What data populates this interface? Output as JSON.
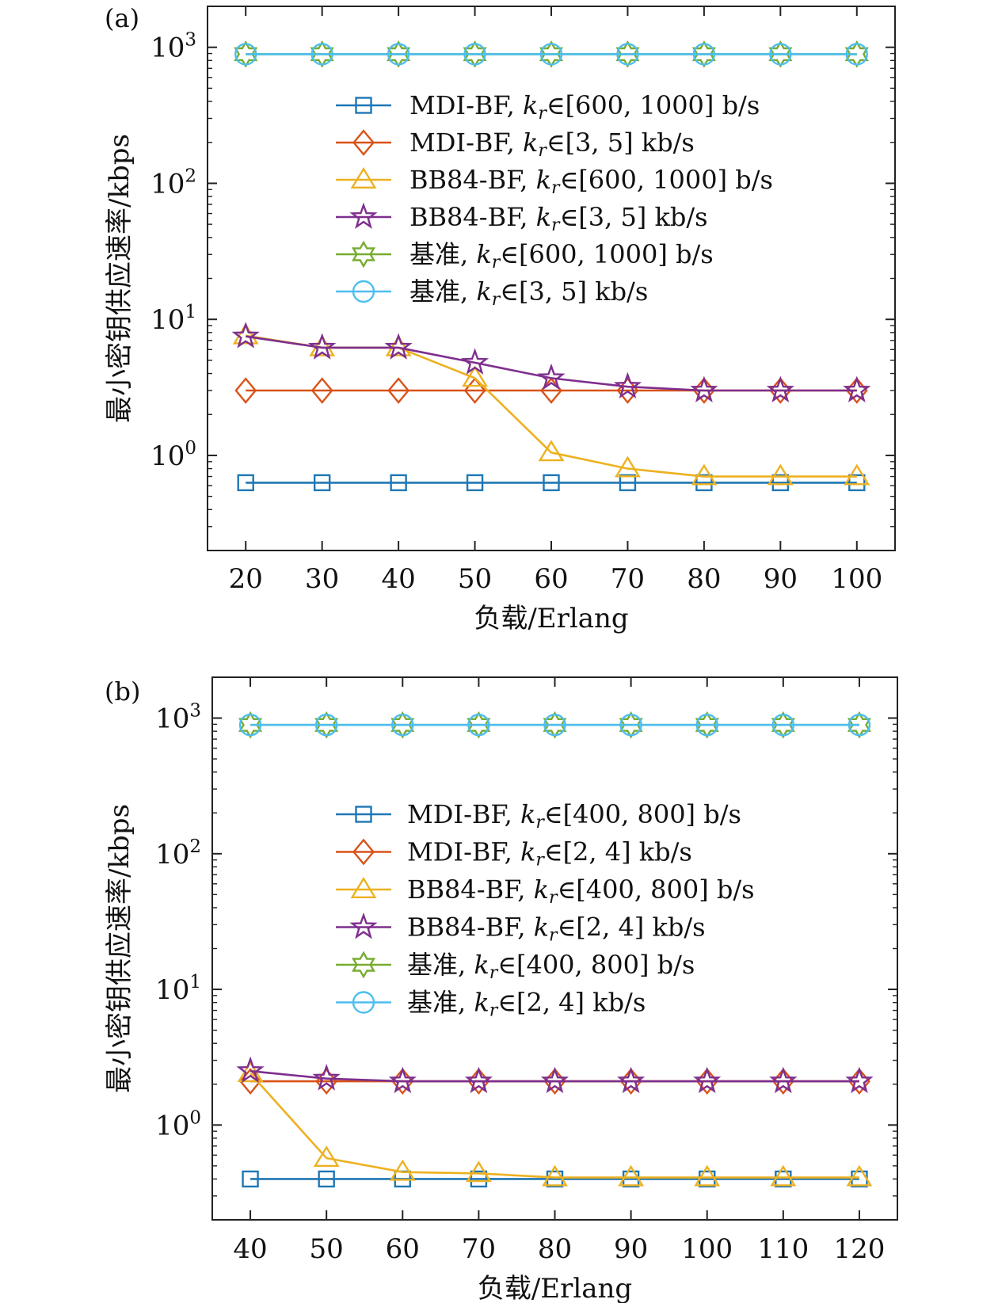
{
  "colors": {
    "blue": "#1f77b4",
    "orange": "#d95319",
    "yellow": "#edb120",
    "purple": "#7e2f8e",
    "green": "#77ac30",
    "cyan": "#4dbeee"
  },
  "chart_data": [
    {
      "type": "line",
      "panel_label": "(a)",
      "xlabel": "负载/Erlang",
      "ylabel": "最小密钥供应速率/kbps",
      "yscale": "log",
      "ylim": [
        0.2,
        2000
      ],
      "yticks": [
        1,
        10,
        100,
        1000
      ],
      "ytick_labels": [
        {
          "base": "10",
          "exp": "0"
        },
        {
          "base": "10",
          "exp": "1"
        },
        {
          "base": "10",
          "exp": "2"
        },
        {
          "base": "10",
          "exp": "3"
        }
      ],
      "xlim": [
        15,
        105
      ],
      "x": [
        20,
        30,
        40,
        50,
        60,
        70,
        80,
        90,
        100
      ],
      "xtick_labels": [
        "20",
        "30",
        "40",
        "50",
        "60",
        "70",
        "80",
        "90",
        "100"
      ],
      "legend_position": "upper-right",
      "series": [
        {
          "name": "MDI-BF, kr∈[600, 1000] b/s",
          "label_prefix": "MDI-BF, ",
          "label_range": "∈[600, 1000] b/s",
          "color_key": "blue",
          "marker": "square",
          "values": [
            0.63,
            0.63,
            0.63,
            0.63,
            0.63,
            0.63,
            0.63,
            0.63,
            0.63
          ]
        },
        {
          "name": "MDI-BF, kr∈[3, 5] kb/s",
          "label_prefix": "MDI-BF, ",
          "label_range": "∈[3, 5] kb/s",
          "color_key": "orange",
          "marker": "diamond",
          "values": [
            3.0,
            3.0,
            3.0,
            3.0,
            3.0,
            3.0,
            3.0,
            3.0,
            3.0
          ]
        },
        {
          "name": "BB84-BF, kr∈[600, 1000] b/s",
          "label_prefix": "BB84-BF, ",
          "label_range": "∈[600, 1000] b/s",
          "color_key": "yellow",
          "marker": "triangle",
          "values": [
            7.6,
            6.2,
            6.2,
            3.7,
            1.05,
            0.8,
            0.7,
            0.7,
            0.7
          ]
        },
        {
          "name": "BB84-BF, kr∈[3, 5] kb/s",
          "label_prefix": "BB84-BF, ",
          "label_range": "∈[3, 5] kb/s",
          "color_key": "purple",
          "marker": "star5",
          "values": [
            7.5,
            6.2,
            6.2,
            4.8,
            3.7,
            3.2,
            3.0,
            3.0,
            3.0
          ]
        },
        {
          "name": "基准, kr∈[600, 1000] b/s",
          "label_prefix": "基准, ",
          "label_range": "∈[600, 1000] b/s",
          "color_key": "green",
          "marker": "hexagram",
          "values": [
            890,
            890,
            890,
            890,
            890,
            890,
            890,
            890,
            890
          ]
        },
        {
          "name": "基准, kr∈[3, 5] kb/s",
          "label_prefix": "基准, ",
          "label_range": "∈[3, 5] kb/s",
          "color_key": "cyan",
          "marker": "circle",
          "values": [
            890,
            890,
            890,
            890,
            890,
            890,
            890,
            890,
            890
          ]
        }
      ]
    },
    {
      "type": "line",
      "panel_label": "(b)",
      "xlabel": "负载/Erlang",
      "ylabel": "最小密钥供应速率/kbps",
      "yscale": "log",
      "ylim": [
        0.2,
        2000
      ],
      "yticks": [
        1,
        10,
        100,
        1000
      ],
      "ytick_labels": [
        {
          "base": "10",
          "exp": "0"
        },
        {
          "base": "10",
          "exp": "1"
        },
        {
          "base": "10",
          "exp": "2"
        },
        {
          "base": "10",
          "exp": "3"
        }
      ],
      "xlim": [
        35,
        125
      ],
      "x": [
        40,
        50,
        60,
        70,
        80,
        90,
        100,
        110,
        120
      ],
      "xtick_labels": [
        "40",
        "50",
        "60",
        "70",
        "80",
        "90",
        "100",
        "110",
        "120"
      ],
      "legend_position": "upper-right",
      "series": [
        {
          "name": "MDI-BF, kr∈[400, 800] b/s",
          "label_prefix": "MDI-BF, ",
          "label_range": "∈[400, 800] b/s",
          "color_key": "blue",
          "marker": "square",
          "values": [
            0.4,
            0.4,
            0.4,
            0.4,
            0.4,
            0.4,
            0.4,
            0.4,
            0.4
          ]
        },
        {
          "name": "MDI-BF, kr∈[2, 4] kb/s",
          "label_prefix": "MDI-BF, ",
          "label_range": "∈[2, 4] kb/s",
          "color_key": "orange",
          "marker": "diamond",
          "values": [
            2.1,
            2.1,
            2.1,
            2.1,
            2.1,
            2.1,
            2.1,
            2.1,
            2.1
          ]
        },
        {
          "name": "BB84-BF, kr∈[400, 800] b/s",
          "label_prefix": "BB84-BF, ",
          "label_range": "∈[400, 800] b/s",
          "color_key": "yellow",
          "marker": "triangle",
          "values": [
            2.4,
            0.57,
            0.45,
            0.44,
            0.41,
            0.41,
            0.41,
            0.41,
            0.41
          ]
        },
        {
          "name": "BB84-BF, kr∈[2, 4] kb/s",
          "label_prefix": "BB84-BF, ",
          "label_range": "∈[2, 4] kb/s",
          "color_key": "purple",
          "marker": "star5",
          "values": [
            2.5,
            2.2,
            2.1,
            2.1,
            2.1,
            2.1,
            2.1,
            2.1,
            2.1
          ]
        },
        {
          "name": "基准, kr∈[400, 800] b/s",
          "label_prefix": "基准, ",
          "label_range": "∈[400, 800] b/s",
          "color_key": "green",
          "marker": "hexagram",
          "values": [
            890,
            890,
            890,
            890,
            890,
            890,
            890,
            890,
            890
          ]
        },
        {
          "name": "基准, kr∈[2, 4] kb/s",
          "label_prefix": "基准, ",
          "label_range": "∈[2, 4] kb/s",
          "color_key": "cyan",
          "marker": "circle",
          "values": [
            890,
            890,
            890,
            890,
            890,
            890,
            890,
            890,
            890
          ]
        }
      ]
    }
  ]
}
